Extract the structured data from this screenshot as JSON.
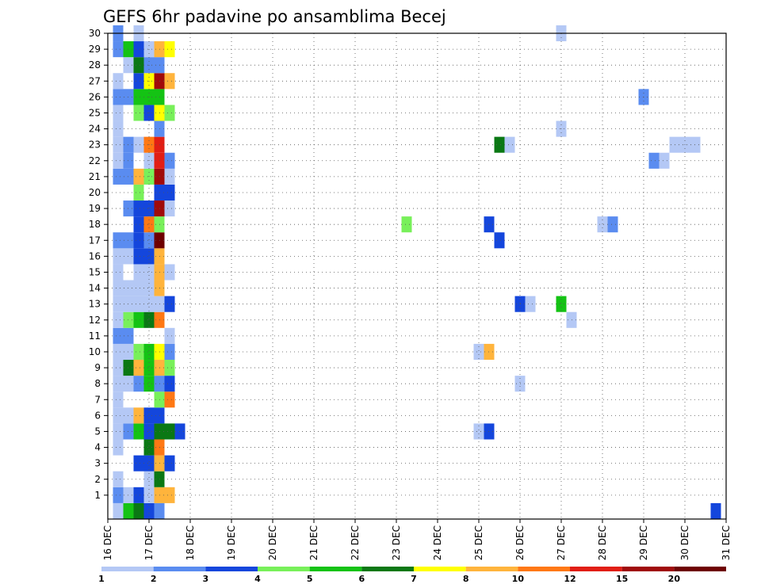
{
  "chart_data": {
    "type": "heatmap",
    "title": "GEFS 6hr padavine po ansamblima Becej",
    "x_ticks": [
      "16 DEC",
      "17 DEC",
      "18 DEC",
      "19 DEC",
      "20 DEC",
      "21 DEC",
      "22 DEC",
      "23 DEC",
      "24 DEC",
      "25 DEC",
      "26 DEC",
      "27 DEC",
      "28 DEC",
      "29 DEC",
      "30 DEC",
      "31 DEC"
    ],
    "y_ticks": [
      "1",
      "2",
      "3",
      "4",
      "5",
      "6",
      "7",
      "8",
      "9",
      "10",
      "11",
      "12",
      "13",
      "14",
      "15",
      "16",
      "17",
      "18",
      "19",
      "20",
      "21",
      "22",
      "23",
      "24",
      "25",
      "26",
      "27",
      "28",
      "29",
      "30"
    ],
    "x_range": [
      "16 DEC",
      "31 DEC"
    ],
    "y_range": [
      0,
      30
    ],
    "grid": true,
    "legend": {
      "placement": "bottom",
      "labels": [
        "1",
        "2",
        "3",
        "4",
        "5",
        "6",
        "7",
        "8",
        "10",
        "12",
        "15",
        "20"
      ],
      "colors": [
        "#b4c8f5",
        "#5a8cf0",
        "#1446dc",
        "#78f05a",
        "#14c314",
        "#0a7814",
        "#ffff00",
        "#ffb43c",
        "#ff7814",
        "#e11e14",
        "#a00a0a",
        "#6e0000"
      ]
    },
    "values_unit": "mm / 6hr (class index)",
    "cells": [
      {
        "day": 0.25,
        "member": 0,
        "class": 0
      },
      {
        "day": 0.5,
        "member": 0,
        "class": 4
      },
      {
        "day": 0.75,
        "member": 0,
        "class": 5
      },
      {
        "day": 1.0,
        "member": 0,
        "class": 2
      },
      {
        "day": 1.25,
        "member": 0,
        "class": 1
      },
      {
        "day": 14.75,
        "member": 0,
        "class": 2
      },
      {
        "day": 0.25,
        "member": 1,
        "class": 1
      },
      {
        "day": 0.5,
        "member": 1,
        "class": 0
      },
      {
        "day": 0.75,
        "member": 1,
        "class": 2
      },
      {
        "day": 1.0,
        "member": 1,
        "class": 0
      },
      {
        "day": 1.25,
        "member": 1,
        "class": 7
      },
      {
        "day": 1.5,
        "member": 1,
        "class": 7
      },
      {
        "day": 0.25,
        "member": 2,
        "class": 0
      },
      {
        "day": 1.0,
        "member": 2,
        "class": 0
      },
      {
        "day": 1.25,
        "member": 2,
        "class": 5
      },
      {
        "day": 0.75,
        "member": 3,
        "class": 2
      },
      {
        "day": 1.0,
        "member": 3,
        "class": 2
      },
      {
        "day": 1.25,
        "member": 3,
        "class": 7
      },
      {
        "day": 1.5,
        "member": 3,
        "class": 2
      },
      {
        "day": 0.25,
        "member": 4,
        "class": 0
      },
      {
        "day": 1.0,
        "member": 4,
        "class": 5
      },
      {
        "day": 1.25,
        "member": 4,
        "class": 8
      },
      {
        "day": 0.25,
        "member": 5,
        "class": 0
      },
      {
        "day": 0.5,
        "member": 5,
        "class": 1
      },
      {
        "day": 0.75,
        "member": 5,
        "class": 4
      },
      {
        "day": 1.0,
        "member": 5,
        "class": 2
      },
      {
        "day": 1.25,
        "member": 5,
        "class": 5
      },
      {
        "day": 1.5,
        "member": 5,
        "class": 5
      },
      {
        "day": 1.75,
        "member": 5,
        "class": 2
      },
      {
        "day": 9.0,
        "member": 5,
        "class": 0
      },
      {
        "day": 9.25,
        "member": 5,
        "class": 2
      },
      {
        "day": 0.25,
        "member": 6,
        "class": 0
      },
      {
        "day": 0.5,
        "member": 6,
        "class": 0
      },
      {
        "day": 0.75,
        "member": 6,
        "class": 7
      },
      {
        "day": 1.0,
        "member": 6,
        "class": 2
      },
      {
        "day": 1.25,
        "member": 6,
        "class": 2
      },
      {
        "day": 0.25,
        "member": 7,
        "class": 0
      },
      {
        "day": 1.25,
        "member": 7,
        "class": 3
      },
      {
        "day": 1.5,
        "member": 7,
        "class": 8
      },
      {
        "day": 0.25,
        "member": 8,
        "class": 0
      },
      {
        "day": 0.5,
        "member": 8,
        "class": 0
      },
      {
        "day": 0.75,
        "member": 8,
        "class": 1
      },
      {
        "day": 1.0,
        "member": 8,
        "class": 4
      },
      {
        "day": 1.25,
        "member": 8,
        "class": 1
      },
      {
        "day": 1.5,
        "member": 8,
        "class": 2
      },
      {
        "day": 10.0,
        "member": 8,
        "class": 0
      },
      {
        "day": 0.25,
        "member": 9,
        "class": 0
      },
      {
        "day": 0.5,
        "member": 9,
        "class": 5
      },
      {
        "day": 0.75,
        "member": 9,
        "class": 7
      },
      {
        "day": 1.0,
        "member": 9,
        "class": 4
      },
      {
        "day": 1.25,
        "member": 9,
        "class": 7
      },
      {
        "day": 1.5,
        "member": 9,
        "class": 3
      },
      {
        "day": 0.25,
        "member": 10,
        "class": 0
      },
      {
        "day": 0.5,
        "member": 10,
        "class": 0
      },
      {
        "day": 0.75,
        "member": 10,
        "class": 3
      },
      {
        "day": 1.0,
        "member": 10,
        "class": 4
      },
      {
        "day": 1.25,
        "member": 10,
        "class": 6
      },
      {
        "day": 1.5,
        "member": 10,
        "class": 1
      },
      {
        "day": 9.0,
        "member": 10,
        "class": 0
      },
      {
        "day": 9.25,
        "member": 10,
        "class": 7
      },
      {
        "day": 0.25,
        "member": 11,
        "class": 1
      },
      {
        "day": 0.5,
        "member": 11,
        "class": 1
      },
      {
        "day": 1.5,
        "member": 11,
        "class": 0
      },
      {
        "day": 0.25,
        "member": 12,
        "class": 0
      },
      {
        "day": 0.5,
        "member": 12,
        "class": 3
      },
      {
        "day": 0.75,
        "member": 12,
        "class": 4
      },
      {
        "day": 1.0,
        "member": 12,
        "class": 5
      },
      {
        "day": 1.25,
        "member": 12,
        "class": 8
      },
      {
        "day": 11.25,
        "member": 12,
        "class": 0
      },
      {
        "day": 0.25,
        "member": 13,
        "class": 0
      },
      {
        "day": 0.5,
        "member": 13,
        "class": 0
      },
      {
        "day": 0.75,
        "member": 13,
        "class": 0
      },
      {
        "day": 1.0,
        "member": 13,
        "class": 0
      },
      {
        "day": 1.25,
        "member": 13,
        "class": 0
      },
      {
        "day": 1.5,
        "member": 13,
        "class": 2
      },
      {
        "day": 10.0,
        "member": 13,
        "class": 2
      },
      {
        "day": 10.25,
        "member": 13,
        "class": 0
      },
      {
        "day": 11.0,
        "member": 13,
        "class": 4
      },
      {
        "day": 0.25,
        "member": 14,
        "class": 0
      },
      {
        "day": 0.5,
        "member": 14,
        "class": 0
      },
      {
        "day": 0.75,
        "member": 14,
        "class": 0
      },
      {
        "day": 1.0,
        "member": 14,
        "class": 0
      },
      {
        "day": 1.25,
        "member": 14,
        "class": 7
      },
      {
        "day": 0.25,
        "member": 15,
        "class": 0
      },
      {
        "day": 0.75,
        "member": 15,
        "class": 0
      },
      {
        "day": 1.0,
        "member": 15,
        "class": 0
      },
      {
        "day": 1.25,
        "member": 15,
        "class": 7
      },
      {
        "day": 1.5,
        "member": 15,
        "class": 0
      },
      {
        "day": 0.25,
        "member": 16,
        "class": 0
      },
      {
        "day": 0.5,
        "member": 16,
        "class": 0
      },
      {
        "day": 0.75,
        "member": 16,
        "class": 2
      },
      {
        "day": 1.0,
        "member": 16,
        "class": 2
      },
      {
        "day": 1.25,
        "member": 16,
        "class": 7
      },
      {
        "day": 0.25,
        "member": 17,
        "class": 1
      },
      {
        "day": 0.5,
        "member": 17,
        "class": 1
      },
      {
        "day": 0.75,
        "member": 17,
        "class": 2
      },
      {
        "day": 1.0,
        "member": 17,
        "class": 1
      },
      {
        "day": 1.25,
        "member": 17,
        "class": 11
      },
      {
        "day": 9.5,
        "member": 17,
        "class": 2
      },
      {
        "day": 0.75,
        "member": 18,
        "class": 2
      },
      {
        "day": 1.0,
        "member": 18,
        "class": 8
      },
      {
        "day": 1.25,
        "member": 18,
        "class": 3
      },
      {
        "day": 7.25,
        "member": 18,
        "class": 3
      },
      {
        "day": 9.25,
        "member": 18,
        "class": 2
      },
      {
        "day": 12.0,
        "member": 18,
        "class": 0
      },
      {
        "day": 12.25,
        "member": 18,
        "class": 1
      },
      {
        "day": 0.5,
        "member": 19,
        "class": 1
      },
      {
        "day": 0.75,
        "member": 19,
        "class": 2
      },
      {
        "day": 1.0,
        "member": 19,
        "class": 2
      },
      {
        "day": 1.25,
        "member": 19,
        "class": 10
      },
      {
        "day": 1.5,
        "member": 19,
        "class": 0
      },
      {
        "day": 0.75,
        "member": 20,
        "class": 3
      },
      {
        "day": 1.25,
        "member": 20,
        "class": 2
      },
      {
        "day": 1.5,
        "member": 20,
        "class": 2
      },
      {
        "day": 0.25,
        "member": 21,
        "class": 1
      },
      {
        "day": 0.5,
        "member": 21,
        "class": 1
      },
      {
        "day": 0.75,
        "member": 21,
        "class": 7
      },
      {
        "day": 1.0,
        "member": 21,
        "class": 3
      },
      {
        "day": 1.25,
        "member": 21,
        "class": 10
      },
      {
        "day": 1.5,
        "member": 21,
        "class": 0
      },
      {
        "day": 0.25,
        "member": 22,
        "class": 0
      },
      {
        "day": 0.5,
        "member": 22,
        "class": 1
      },
      {
        "day": 1.0,
        "member": 22,
        "class": 0
      },
      {
        "day": 1.25,
        "member": 22,
        "class": 9
      },
      {
        "day": 1.5,
        "member": 22,
        "class": 1
      },
      {
        "day": 13.25,
        "member": 22,
        "class": 1
      },
      {
        "day": 13.5,
        "member": 22,
        "class": 0
      },
      {
        "day": 0.25,
        "member": 23,
        "class": 0
      },
      {
        "day": 0.5,
        "member": 23,
        "class": 1
      },
      {
        "day": 0.75,
        "member": 23,
        "class": 0
      },
      {
        "day": 1.0,
        "member": 23,
        "class": 8
      },
      {
        "day": 1.25,
        "member": 23,
        "class": 9
      },
      {
        "day": 9.5,
        "member": 23,
        "class": 5
      },
      {
        "day": 9.75,
        "member": 23,
        "class": 0
      },
      {
        "day": 13.75,
        "member": 23,
        "class": 0
      },
      {
        "day": 14.0,
        "member": 23,
        "class": 0
      },
      {
        "day": 14.25,
        "member": 23,
        "class": 0
      },
      {
        "day": 0.25,
        "member": 24,
        "class": 0
      },
      {
        "day": 1.25,
        "member": 24,
        "class": 1
      },
      {
        "day": 11.0,
        "member": 24,
        "class": 0
      },
      {
        "day": 0.25,
        "member": 25,
        "class": 0
      },
      {
        "day": 0.75,
        "member": 25,
        "class": 3
      },
      {
        "day": 1.0,
        "member": 25,
        "class": 2
      },
      {
        "day": 1.25,
        "member": 25,
        "class": 6
      },
      {
        "day": 1.5,
        "member": 25,
        "class": 3
      },
      {
        "day": 0.25,
        "member": 26,
        "class": 1
      },
      {
        "day": 0.5,
        "member": 26,
        "class": 1
      },
      {
        "day": 0.75,
        "member": 26,
        "class": 4
      },
      {
        "day": 1.0,
        "member": 26,
        "class": 4
      },
      {
        "day": 1.25,
        "member": 26,
        "class": 4
      },
      {
        "day": 13.0,
        "member": 26,
        "class": 1
      },
      {
        "day": 0.25,
        "member": 27,
        "class": 0
      },
      {
        "day": 0.75,
        "member": 27,
        "class": 2
      },
      {
        "day": 1.0,
        "member": 27,
        "class": 6
      },
      {
        "day": 1.25,
        "member": 27,
        "class": 10
      },
      {
        "day": 1.5,
        "member": 27,
        "class": 7
      },
      {
        "day": 0.5,
        "member": 28,
        "class": 0
      },
      {
        "day": 0.75,
        "member": 28,
        "class": 5
      },
      {
        "day": 1.0,
        "member": 28,
        "class": 1
      },
      {
        "day": 1.25,
        "member": 28,
        "class": 1
      },
      {
        "day": 0.25,
        "member": 29,
        "class": 1
      },
      {
        "day": 0.5,
        "member": 29,
        "class": 4
      },
      {
        "day": 0.75,
        "member": 29,
        "class": 2
      },
      {
        "day": 1.0,
        "member": 29,
        "class": 0
      },
      {
        "day": 1.25,
        "member": 29,
        "class": 7
      },
      {
        "day": 1.5,
        "member": 29,
        "class": 6
      },
      {
        "day": 0.25,
        "member": 30,
        "class": 1
      },
      {
        "day": 0.75,
        "member": 30,
        "class": 0
      },
      {
        "day": 11.0,
        "member": 30,
        "class": 0
      }
    ]
  }
}
